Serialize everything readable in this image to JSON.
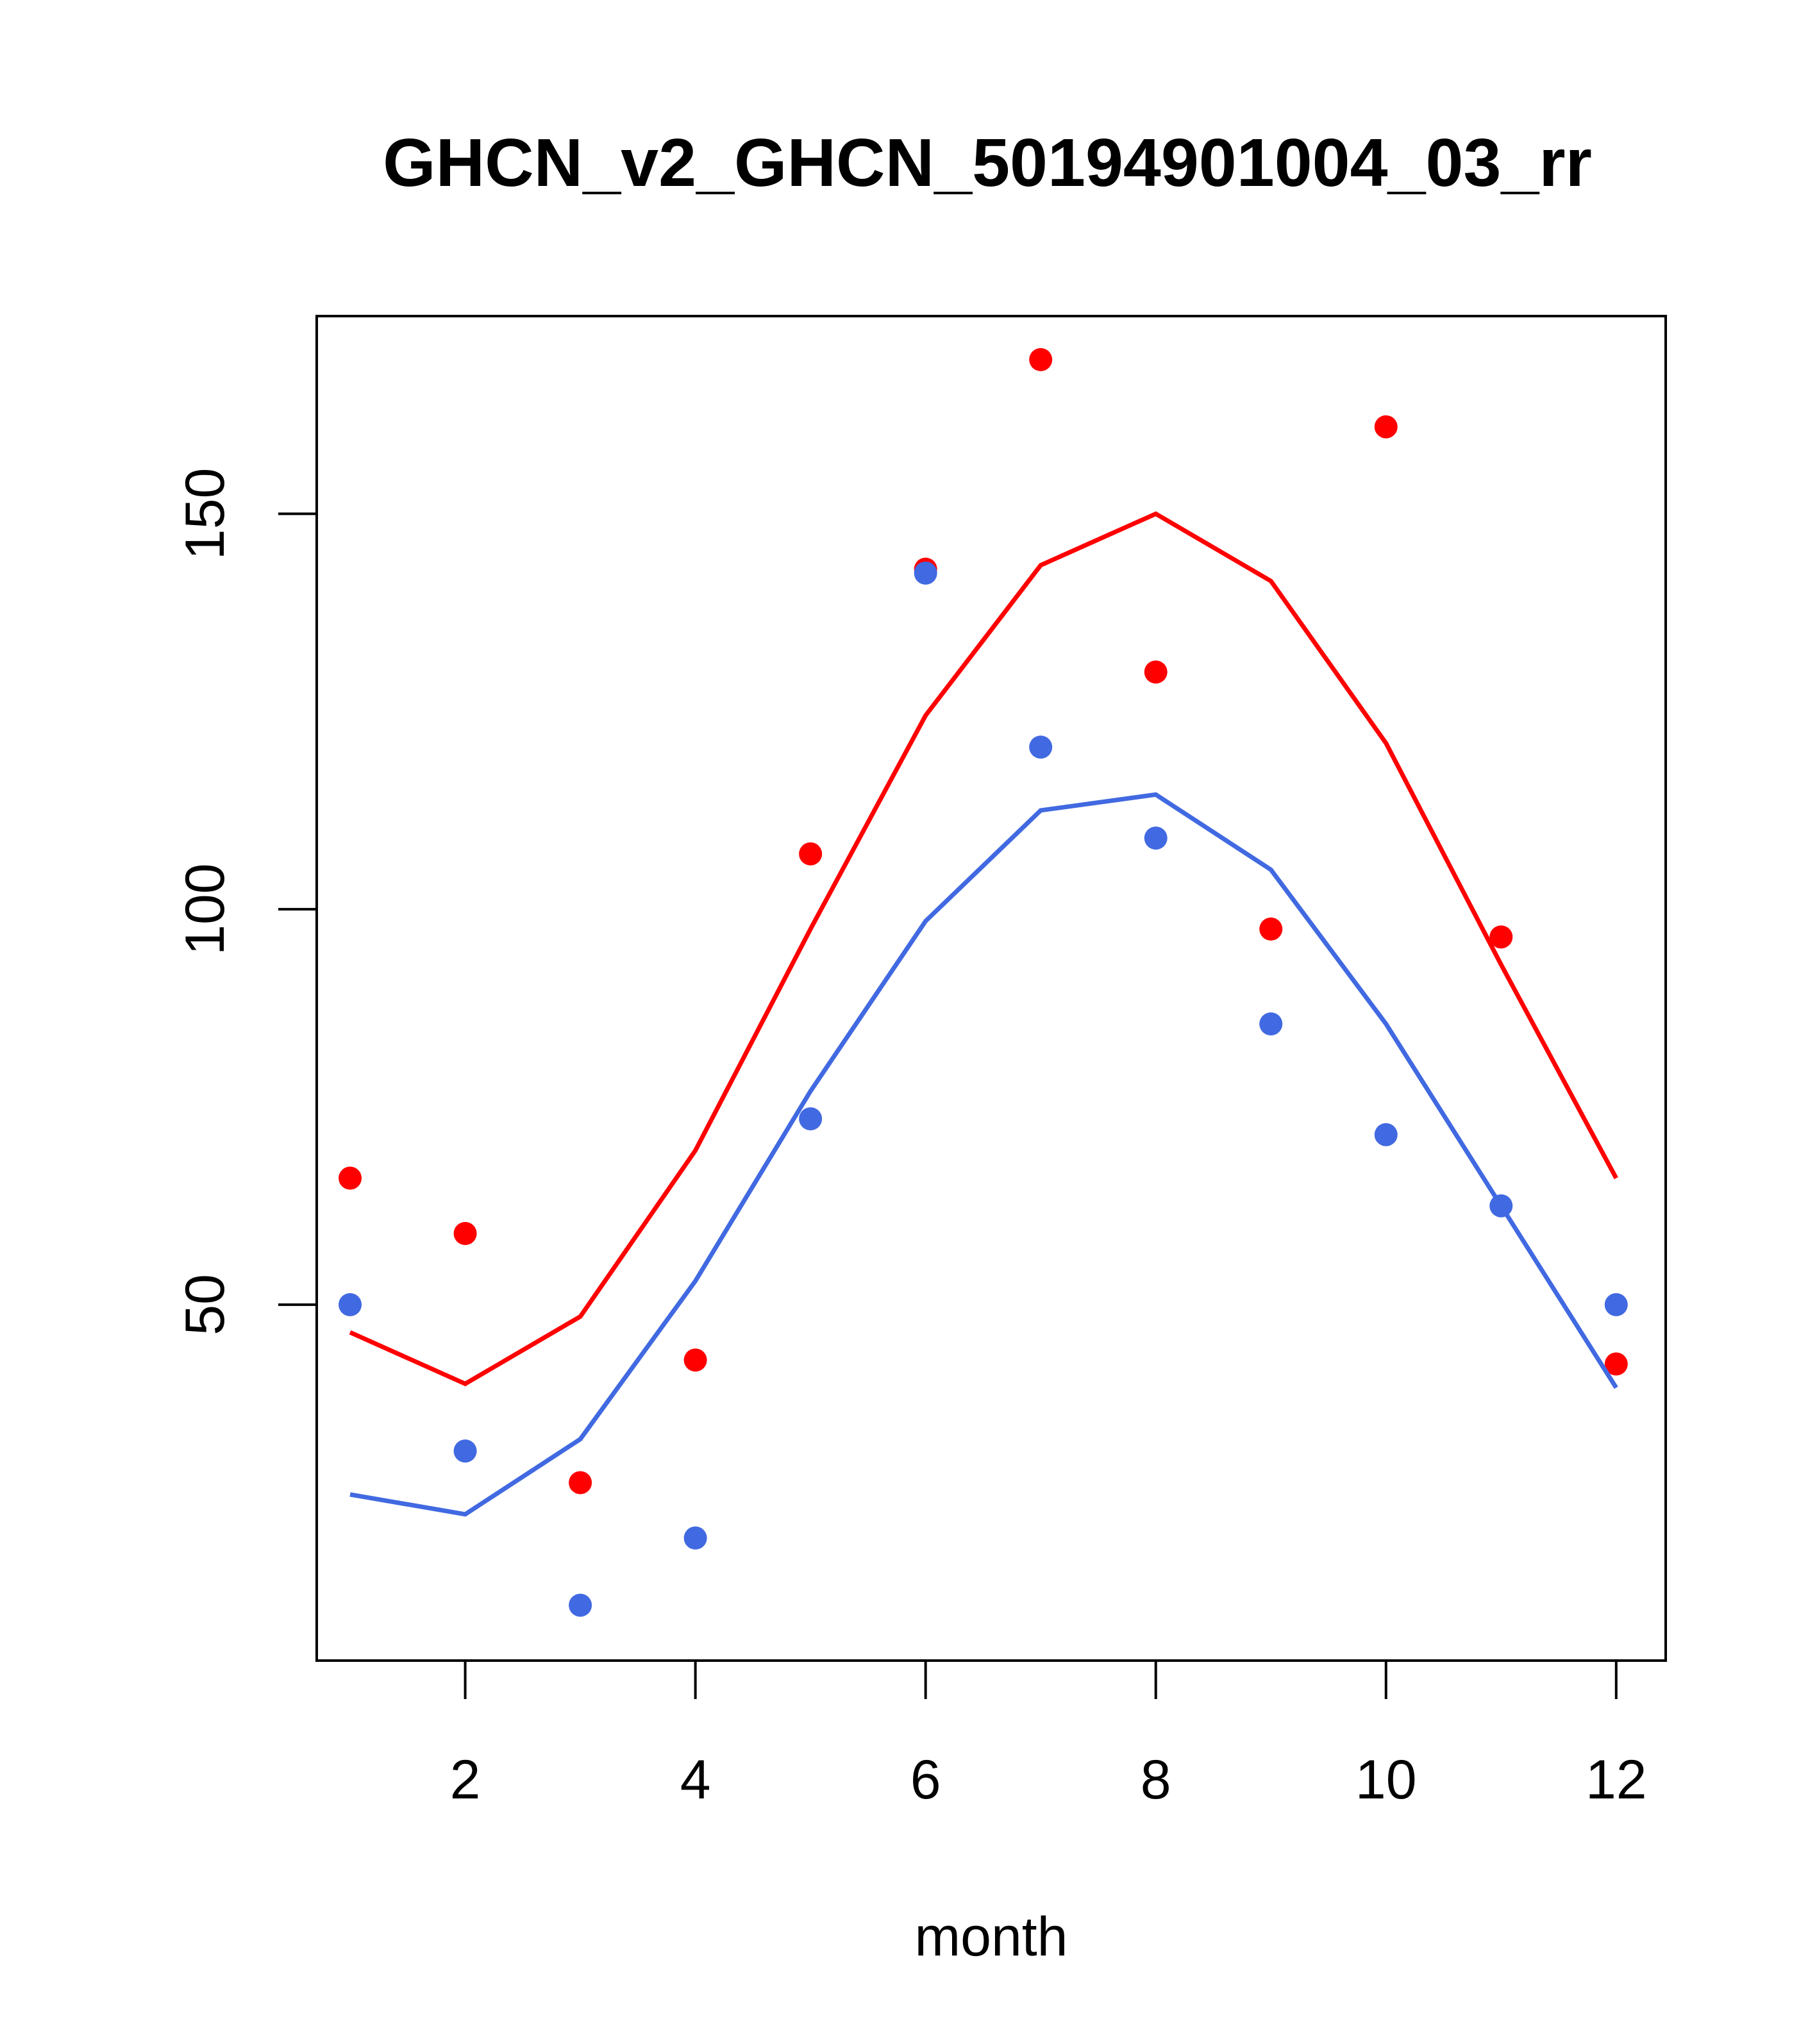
{
  "chart_data": {
    "type": "line",
    "title": "GHCN_v2_GHCN_50194901004_03_rr",
    "xlabel": "month",
    "ylabel": "",
    "xlim": [
      0.71,
      12.43
    ],
    "ylim": [
      5,
      175
    ],
    "xticks": [
      2,
      4,
      6,
      8,
      10,
      12
    ],
    "yticks": [
      50,
      100,
      150
    ],
    "grid": false,
    "series": [
      {
        "color": "#ff0000",
        "kind": "line",
        "x": [
          1,
          2,
          3,
          4,
          5,
          6,
          7,
          8,
          9,
          10,
          11,
          12
        ],
        "values": [
          46.5,
          40.0,
          48.5,
          69.5,
          97.5,
          124.5,
          143.5,
          150.0,
          141.5,
          121.0,
          93.0,
          66.0
        ]
      },
      {
        "color": "#ff0000",
        "kind": "points",
        "x": [
          1,
          2,
          3,
          4,
          5,
          6,
          7,
          8,
          9,
          10,
          11,
          12
        ],
        "values": [
          66.0,
          59.0,
          27.5,
          43.0,
          107.0,
          143.0,
          169.5,
          130.0,
          97.5,
          161.0,
          96.5,
          42.5
        ]
      },
      {
        "color": "#4169e1",
        "kind": "line",
        "x": [
          1,
          2,
          3,
          4,
          5,
          6,
          7,
          8,
          9,
          10,
          11,
          12
        ],
        "values": [
          26.0,
          23.5,
          33.0,
          53.0,
          77.0,
          98.5,
          112.5,
          114.5,
          105.0,
          85.5,
          62.5,
          39.5
        ]
      },
      {
        "color": "#4169e1",
        "kind": "points",
        "x": [
          1,
          2,
          3,
          4,
          5,
          6,
          7,
          8,
          9,
          10,
          11,
          12
        ],
        "values": [
          50.0,
          31.5,
          12.0,
          20.5,
          73.5,
          142.5,
          120.5,
          109.0,
          85.5,
          71.5,
          62.5,
          50.0
        ]
      }
    ]
  }
}
